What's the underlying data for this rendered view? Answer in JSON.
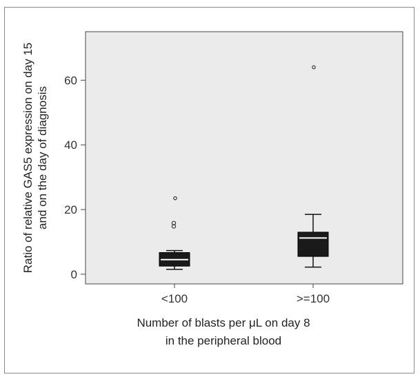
{
  "chart_data": {
    "type": "boxplot",
    "xlabel_lines": [
      "Number of blasts per μL on day 8",
      "in the peripheral blood"
    ],
    "ylabel_lines": [
      "Ratio of relative GAS5 expression on day 15",
      "and on the day of diagnosis"
    ],
    "ylim": [
      -3,
      75
    ],
    "yticks": [
      0,
      20,
      40,
      60
    ],
    "grid": false,
    "categories": [
      "<100",
      ">=100"
    ],
    "boxes": [
      {
        "category": "<100",
        "whisker_low": 1.5,
        "q1": 2.5,
        "median": 4.5,
        "q3": 6.7,
        "whisker_high": 7.3,
        "outliers": [
          14.8,
          15.8
        ],
        "extremes": [
          23.5
        ]
      },
      {
        "category": ">=100",
        "whisker_low": 2.2,
        "q1": 5.5,
        "median": 11.2,
        "q3": 13.0,
        "whisker_high": 18.5,
        "outliers": [],
        "extremes": [
          64.0
        ]
      }
    ],
    "colors": {
      "plot_bg": "#ebebeb",
      "box_fill": "#1a1a1a",
      "median_line": "#ffffff",
      "axis": "#444444"
    }
  }
}
